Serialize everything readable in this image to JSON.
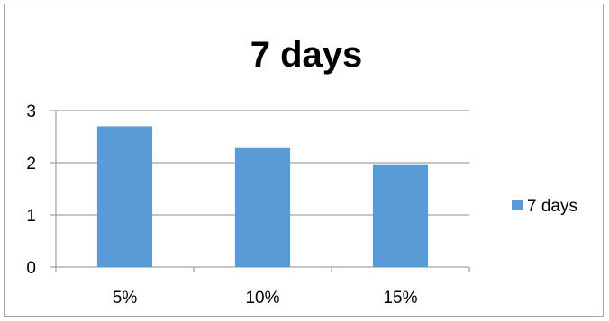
{
  "chart_data": {
    "type": "bar",
    "title": "7 days",
    "categories": [
      "5%",
      "10%",
      "15%"
    ],
    "series": [
      {
        "name": "7 days",
        "values": [
          2.7,
          2.28,
          1.97
        ],
        "color": "#5b9bd5"
      }
    ],
    "ylim": [
      0,
      3
    ],
    "yticks": [
      "0",
      "1",
      "2",
      "3"
    ],
    "grid": true,
    "legend": "right",
    "xlabel": "",
    "ylabel": ""
  }
}
